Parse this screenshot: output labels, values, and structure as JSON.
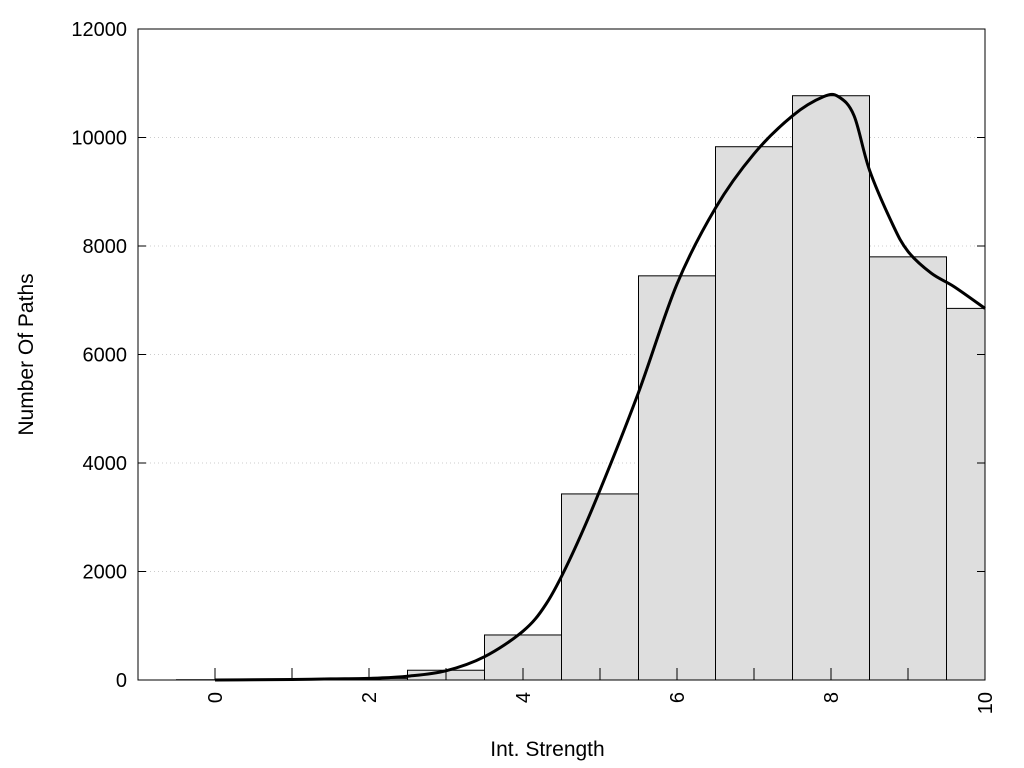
{
  "chart_data": {
    "type": "bar",
    "xlabel": "Int. Strength",
    "ylabel": "Number Of Paths",
    "xlim": [
      -1,
      10
    ],
    "ylim": [
      0,
      12000
    ],
    "x_ticks": [
      "0",
      "2",
      "4",
      "6",
      "8",
      "10"
    ],
    "y_ticks": [
      "0",
      "2000",
      "4000",
      "6000",
      "8000",
      "10000",
      "12000"
    ],
    "grid": true,
    "legend": "none",
    "bar_width": 1,
    "bars": [
      {
        "x": 0,
        "value": 5
      },
      {
        "x": 1,
        "value": 10
      },
      {
        "x": 2,
        "value": 30
      },
      {
        "x": 3,
        "value": 180
      },
      {
        "x": 4,
        "value": 830
      },
      {
        "x": 5,
        "value": 3430
      },
      {
        "x": 6,
        "value": 7450
      },
      {
        "x": 7,
        "value": 9830
      },
      {
        "x": 8,
        "value": 10770
      },
      {
        "x": 9,
        "value": 7800
      },
      {
        "x": 10,
        "value": 6850
      }
    ],
    "curve": {
      "x": [
        0,
        0.5,
        1,
        1.5,
        2,
        2.5,
        3,
        3.5,
        4,
        4.3,
        4.6,
        5,
        5.5,
        6,
        6.5,
        7,
        7.5,
        7.9,
        8.1,
        8.3,
        8.5,
        8.8,
        9,
        9.3,
        9.6,
        10
      ],
      "y": [
        0,
        5,
        10,
        20,
        30,
        70,
        170,
        430,
        900,
        1400,
        2200,
        3500,
        5300,
        7300,
        8700,
        9700,
        10400,
        10750,
        10750,
        10400,
        9400,
        8400,
        7900,
        7500,
        7250,
        6850
      ]
    },
    "colors": {
      "bar_fill": "#dedede",
      "bar_stroke": "#000000",
      "curve": "#000000",
      "grid": "#cccccc"
    }
  }
}
